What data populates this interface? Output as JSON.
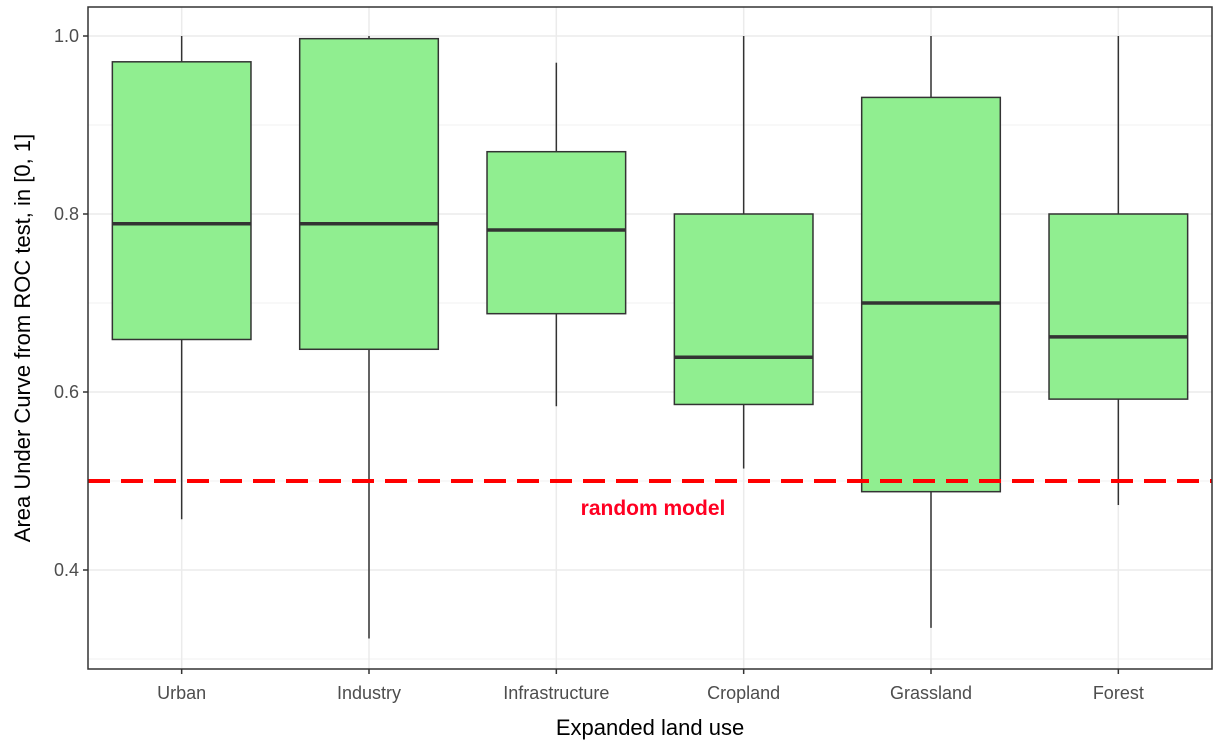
{
  "chart_data": {
    "type": "box",
    "xlabel": "Expanded land use",
    "ylabel": "Area Under Curve from ROC test, in [0, 1]",
    "ylim": [
      0.28,
      1.03
    ],
    "yticks": [
      0.4,
      0.6,
      0.8,
      1.0
    ],
    "ytick_labels": [
      "0.4",
      "0.6",
      "0.8",
      "1.0"
    ],
    "grid": true,
    "colors": {
      "box_fill": "#90ee90",
      "box_stroke": "#333333",
      "reference_line": "#ff0000",
      "grid": "#ebebeb",
      "panel_border": "#333333"
    },
    "categories": [
      "Urban",
      "Industry",
      "Infrastructure",
      "Cropland",
      "Grassland",
      "Forest"
    ],
    "boxes": [
      {
        "label": "Urban",
        "min": 0.457,
        "q1": 0.659,
        "median": 0.789,
        "q3": 0.971,
        "max": 1.0
      },
      {
        "label": "Industry",
        "min": 0.323,
        "q1": 0.648,
        "median": 0.789,
        "q3": 0.997,
        "max": 1.0
      },
      {
        "label": "Infrastructure",
        "min": 0.584,
        "q1": 0.688,
        "median": 0.782,
        "q3": 0.87,
        "max": 0.97
      },
      {
        "label": "Cropland",
        "min": 0.514,
        "q1": 0.586,
        "median": 0.639,
        "q3": 0.8,
        "max": 1.0
      },
      {
        "label": "Grassland",
        "min": 0.335,
        "q1": 0.488,
        "median": 0.7,
        "q3": 0.931,
        "max": 1.0
      },
      {
        "label": "Forest",
        "min": 0.473,
        "q1": 0.592,
        "median": 0.662,
        "q3": 0.8,
        "max": 1.0
      }
    ],
    "reference_line": {
      "y": 0.5,
      "label": "random model",
      "style": "dashed"
    }
  }
}
